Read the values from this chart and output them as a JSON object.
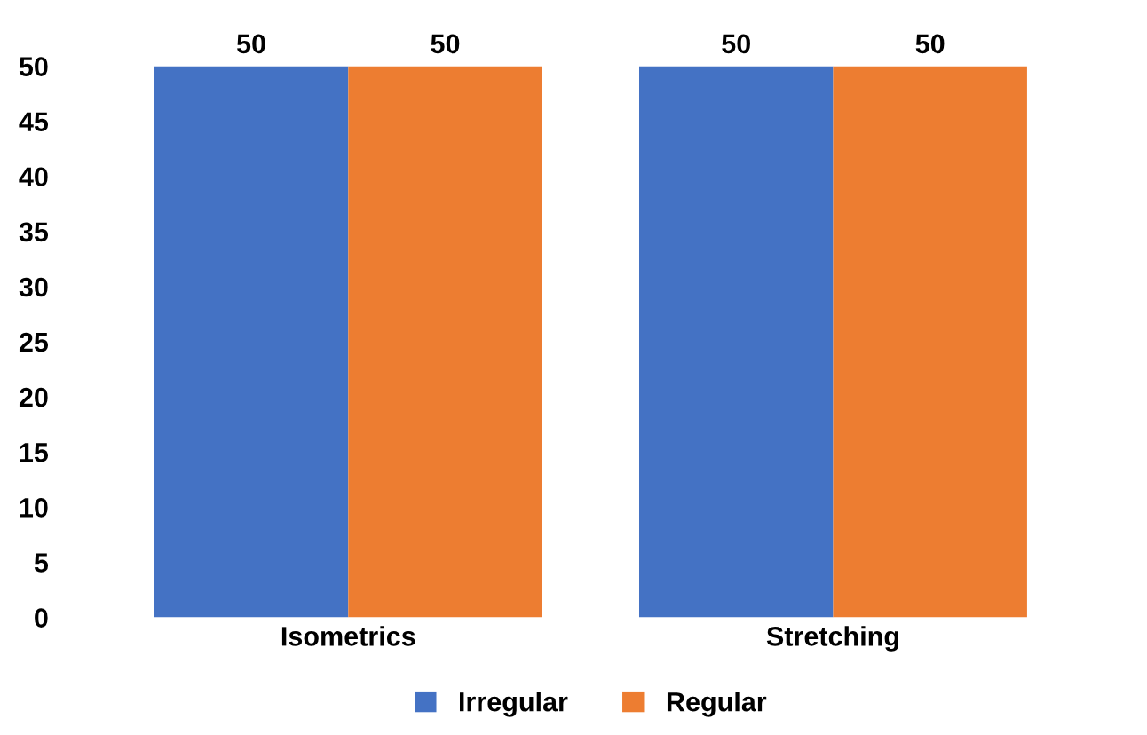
{
  "chart_data": {
    "type": "bar",
    "categories": [
      "Isometrics",
      "Stretching"
    ],
    "series": [
      {
        "name": "Irregular",
        "color": "#4472c4",
        "values": [
          50,
          50
        ]
      },
      {
        "name": "Regular",
        "color": "#ed7d31",
        "values": [
          50,
          50
        ]
      }
    ],
    "ylim": [
      0,
      50
    ],
    "yticks": [
      0,
      5,
      10,
      15,
      20,
      25,
      30,
      35,
      40,
      45,
      50
    ],
    "grid": false,
    "legend": "bottom",
    "data_labels": true
  }
}
